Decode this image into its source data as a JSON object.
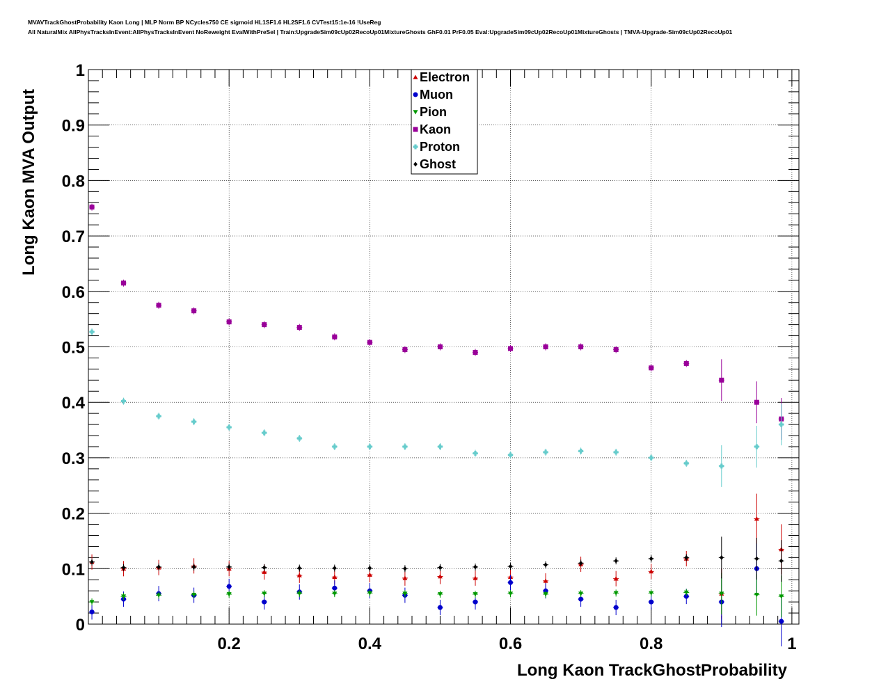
{
  "header": {
    "line1": "MVAVTrackGhostProbability Kaon Long | MLP Norm BP NCycles750 CE sigmoid HL1SF1.6 HL2SF1.6 CVTest15:1e-16 !UseReg",
    "line2": "All NaturalMix AllPhysTracksInEvent:AllPhysTracksInEvent NoReweight EvalWithPreSel | Train:UpgradeSim09cUp02RecoUp01MixtureGhosts GhF0.01 PrF0.05 Eval:UpgradeSim09cUp02RecoUp01MixtureGhosts | TMVA-Upgrade-Sim09cUp02RecoUp01"
  },
  "chart_data": {
    "type": "scatter",
    "xlabel": "Long Kaon TrackGhostProbability",
    "ylabel": "Long Kaon MVA Output",
    "xlim": [
      0.0,
      1.01
    ],
    "ylim": [
      0,
      1
    ],
    "xticks": [
      "0.2",
      "0.4",
      "0.6",
      "0.8",
      "1"
    ],
    "yticks": [
      "0",
      "0.1",
      "0.2",
      "0.3",
      "0.4",
      "0.5",
      "0.6",
      "0.7",
      "0.8",
      "0.9",
      "1"
    ],
    "grid": true,
    "legend_position": "top-center",
    "series": [
      {
        "name": "Electron",
        "color": "#cc0000",
        "marker": "triangle-up",
        "x": [
          0.005,
          0.05,
          0.1,
          0.15,
          0.2,
          0.25,
          0.3,
          0.35,
          0.4,
          0.45,
          0.5,
          0.55,
          0.6,
          0.65,
          0.7,
          0.75,
          0.8,
          0.85,
          0.9,
          0.95,
          0.985
        ],
        "y": [
          0.112,
          0.1,
          0.102,
          0.105,
          0.1,
          0.094,
          0.088,
          0.085,
          0.089,
          0.083,
          0.086,
          0.083,
          0.085,
          0.078,
          0.108,
          0.082,
          0.095,
          0.118,
          0.055,
          0.19,
          0.135
        ]
      },
      {
        "name": "Muon",
        "color": "#0000cc",
        "marker": "circle",
        "x": [
          0.005,
          0.05,
          0.1,
          0.15,
          0.2,
          0.25,
          0.3,
          0.35,
          0.4,
          0.45,
          0.5,
          0.55,
          0.6,
          0.65,
          0.7,
          0.75,
          0.8,
          0.85,
          0.9,
          0.95,
          0.985
        ],
        "y": [
          0.022,
          0.045,
          0.055,
          0.052,
          0.068,
          0.04,
          0.058,
          0.065,
          0.06,
          0.052,
          0.03,
          0.04,
          0.075,
          0.06,
          0.045,
          0.03,
          0.04,
          0.05,
          0.04,
          0.1,
          0.005
        ]
      },
      {
        "name": "Pion",
        "color": "#009900",
        "marker": "triangle-down",
        "x": [
          0.005,
          0.05,
          0.1,
          0.15,
          0.2,
          0.25,
          0.3,
          0.35,
          0.4,
          0.45,
          0.5,
          0.55,
          0.6,
          0.65,
          0.7,
          0.75,
          0.8,
          0.85,
          0.9,
          0.95,
          0.985
        ],
        "y": [
          0.04,
          0.05,
          0.052,
          0.053,
          0.054,
          0.055,
          0.055,
          0.055,
          0.056,
          0.055,
          0.054,
          0.054,
          0.055,
          0.054,
          0.055,
          0.056,
          0.056,
          0.057,
          0.055,
          0.053,
          0.05
        ]
      },
      {
        "name": "Kaon",
        "color": "#990099",
        "marker": "square",
        "x": [
          0.005,
          0.05,
          0.1,
          0.15,
          0.2,
          0.25,
          0.3,
          0.35,
          0.4,
          0.45,
          0.5,
          0.55,
          0.6,
          0.65,
          0.7,
          0.75,
          0.8,
          0.85,
          0.9,
          0.95,
          0.985
        ],
        "y": [
          0.752,
          0.615,
          0.575,
          0.565,
          0.545,
          0.54,
          0.535,
          0.518,
          0.508,
          0.495,
          0.5,
          0.49,
          0.497,
          0.5,
          0.5,
          0.495,
          0.462,
          0.47,
          0.44,
          0.4,
          0.37
        ]
      },
      {
        "name": "Proton",
        "color": "#66cccc",
        "marker": "cross",
        "x": [
          0.005,
          0.05,
          0.1,
          0.15,
          0.2,
          0.25,
          0.3,
          0.35,
          0.4,
          0.45,
          0.5,
          0.55,
          0.6,
          0.65,
          0.7,
          0.75,
          0.8,
          0.85,
          0.9,
          0.95,
          0.985
        ],
        "y": [
          0.527,
          0.402,
          0.375,
          0.365,
          0.355,
          0.345,
          0.335,
          0.32,
          0.32,
          0.32,
          0.32,
          0.308,
          0.305,
          0.31,
          0.312,
          0.31,
          0.3,
          0.29,
          0.285,
          0.32,
          0.36
        ]
      },
      {
        "name": "Ghost",
        "color": "#000000",
        "marker": "diamond",
        "x": [
          0.005,
          0.05,
          0.1,
          0.15,
          0.2,
          0.25,
          0.3,
          0.35,
          0.4,
          0.45,
          0.5,
          0.55,
          0.6,
          0.65,
          0.7,
          0.75,
          0.8,
          0.85,
          0.9,
          0.95,
          0.985
        ],
        "y": [
          0.112,
          0.102,
          0.103,
          0.103,
          0.103,
          0.102,
          0.101,
          0.101,
          0.101,
          0.1,
          0.102,
          0.103,
          0.104,
          0.107,
          0.11,
          0.114,
          0.118,
          0.12,
          0.12,
          0.118,
          0.114
        ]
      }
    ]
  }
}
